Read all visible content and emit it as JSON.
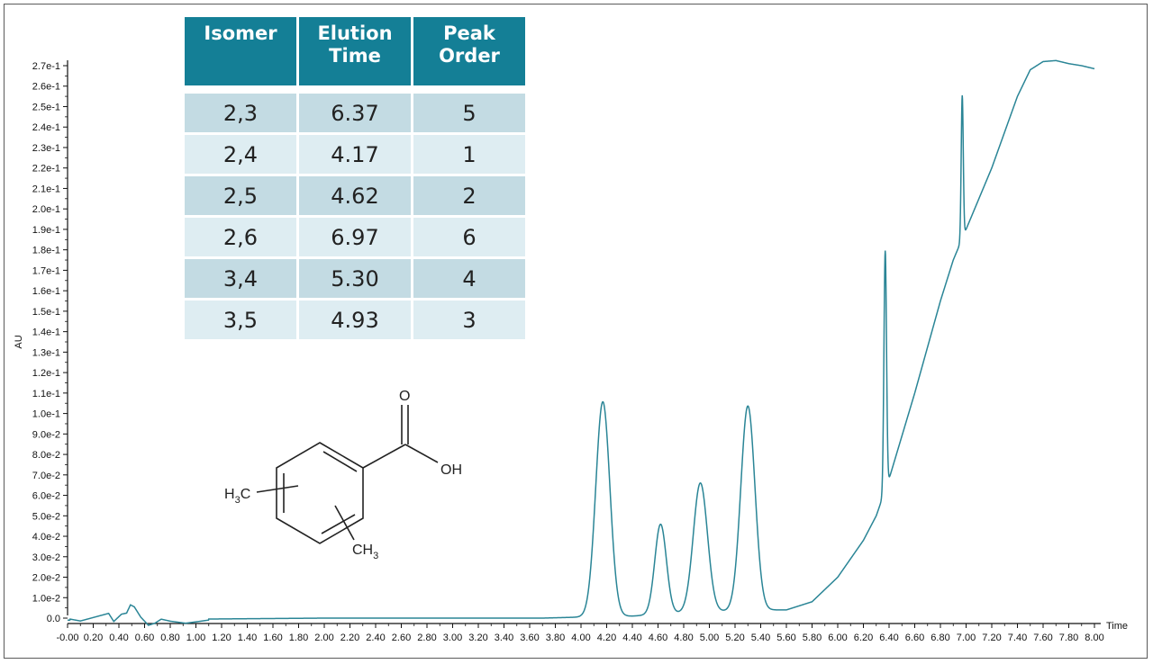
{
  "chart_data": {
    "type": "line",
    "title": "",
    "xlabel": "Time",
    "ylabel": "AU",
    "xlim": [
      0,
      8.0
    ],
    "ylim": [
      0,
      0.27
    ],
    "x_ticks": [
      "-0.00",
      "0.20",
      "0.40",
      "0.60",
      "0.80",
      "1.00",
      "1.20",
      "1.40",
      "1.60",
      "1.80",
      "2.00",
      "2.20",
      "2.40",
      "2.60",
      "2.80",
      "3.00",
      "3.20",
      "3.40",
      "3.60",
      "3.80",
      "4.00",
      "4.20",
      "4.40",
      "4.60",
      "4.80",
      "5.00",
      "5.20",
      "5.40",
      "5.60",
      "5.80",
      "6.00",
      "6.20",
      "6.40",
      "6.60",
      "6.80",
      "7.00",
      "7.20",
      "7.40",
      "7.60",
      "7.80",
      "8.00"
    ],
    "y_ticks": [
      "0.0",
      "1.0e-2",
      "2.0e-2",
      "3.0e-2",
      "4.0e-2",
      "5.0e-2",
      "6.0e-2",
      "7.0e-2",
      "8.0e-2",
      "9.0e-2",
      "1.0e-1",
      "1.1e-1",
      "1.2e-1",
      "1.3e-1",
      "1.4e-1",
      "1.5e-1",
      "1.6e-1",
      "1.7e-1",
      "1.8e-1",
      "1.9e-1",
      "2.0e-1",
      "2.1e-1",
      "2.2e-1",
      "2.3e-1",
      "2.4e-1",
      "2.5e-1",
      "2.6e-1",
      "2.7e-1"
    ],
    "grid": false,
    "series": [
      {
        "color": "#2a8596",
        "baseline": [
          [
            0,
            -0.001
          ],
          [
            0.5,
            -0.0005
          ],
          [
            1.0,
            -0.0005
          ],
          [
            2.0,
            0.0
          ],
          [
            3.0,
            0.0
          ],
          [
            3.7,
            0.0
          ],
          [
            4.0,
            0.0005
          ],
          [
            4.4,
            0.001
          ],
          [
            4.9,
            0.003
          ],
          [
            5.5,
            0.004
          ],
          [
            5.6,
            0.004
          ],
          [
            5.8,
            0.008
          ],
          [
            6.0,
            0.02
          ],
          [
            6.2,
            0.038
          ],
          [
            6.3,
            0.05
          ],
          [
            6.4,
            0.068
          ],
          [
            6.6,
            0.11
          ],
          [
            6.8,
            0.155
          ],
          [
            6.9,
            0.175
          ],
          [
            7.0,
            0.19
          ],
          [
            7.2,
            0.22
          ],
          [
            7.4,
            0.255
          ],
          [
            7.5,
            0.268
          ],
          [
            7.6,
            0.272
          ],
          [
            7.7,
            0.2725
          ],
          [
            7.8,
            0.271
          ],
          [
            7.9,
            0.27
          ],
          [
            8.0,
            0.2685
          ]
        ],
        "noise": [
          [
            0.02,
            0.0005
          ],
          [
            0.1,
            -0.0005
          ],
          [
            0.32,
            0.003
          ],
          [
            0.36,
            -0.001
          ],
          [
            0.42,
            0.0025
          ],
          [
            0.46,
            0.003
          ],
          [
            0.49,
            0.007
          ],
          [
            0.52,
            0.006
          ],
          [
            0.57,
            0.001
          ],
          [
            0.63,
            -0.003
          ],
          [
            0.68,
            -0.002
          ],
          [
            0.73,
            0.0
          ],
          [
            0.8,
            -0.001
          ],
          [
            0.92,
            -0.002
          ],
          [
            1.1,
            -0.0005
          ]
        ],
        "peaks": [
          {
            "time": 4.17,
            "height": 0.105,
            "width": 0.055
          },
          {
            "time": 4.62,
            "height": 0.044,
            "width": 0.045
          },
          {
            "time": 4.93,
            "height": 0.063,
            "width": 0.055
          },
          {
            "time": 5.3,
            "height": 0.1,
            "width": 0.055
          },
          {
            "time": 6.37,
            "height": 0.117,
            "width": 0.01
          },
          {
            "time": 6.97,
            "height": 0.07,
            "width": 0.008
          }
        ]
      }
    ]
  },
  "table": {
    "headers": [
      [
        "Isomer"
      ],
      [
        "Elution",
        "Time"
      ],
      [
        "Peak",
        "Order"
      ]
    ],
    "rows": [
      [
        "2,3",
        "6.37",
        "5"
      ],
      [
        "2,4",
        "4.17",
        "1"
      ],
      [
        "2,5",
        "4.62",
        "2"
      ],
      [
        "2,6",
        "6.97",
        "6"
      ],
      [
        "3,4",
        "5.30",
        "4"
      ],
      [
        "3,5",
        "4.93",
        "3"
      ]
    ]
  },
  "molecule": {
    "o_label": "O",
    "oh_label": "OH",
    "h_label": "H",
    "sub_3": "3",
    "c_label": "C",
    "ch_label": "CH"
  }
}
